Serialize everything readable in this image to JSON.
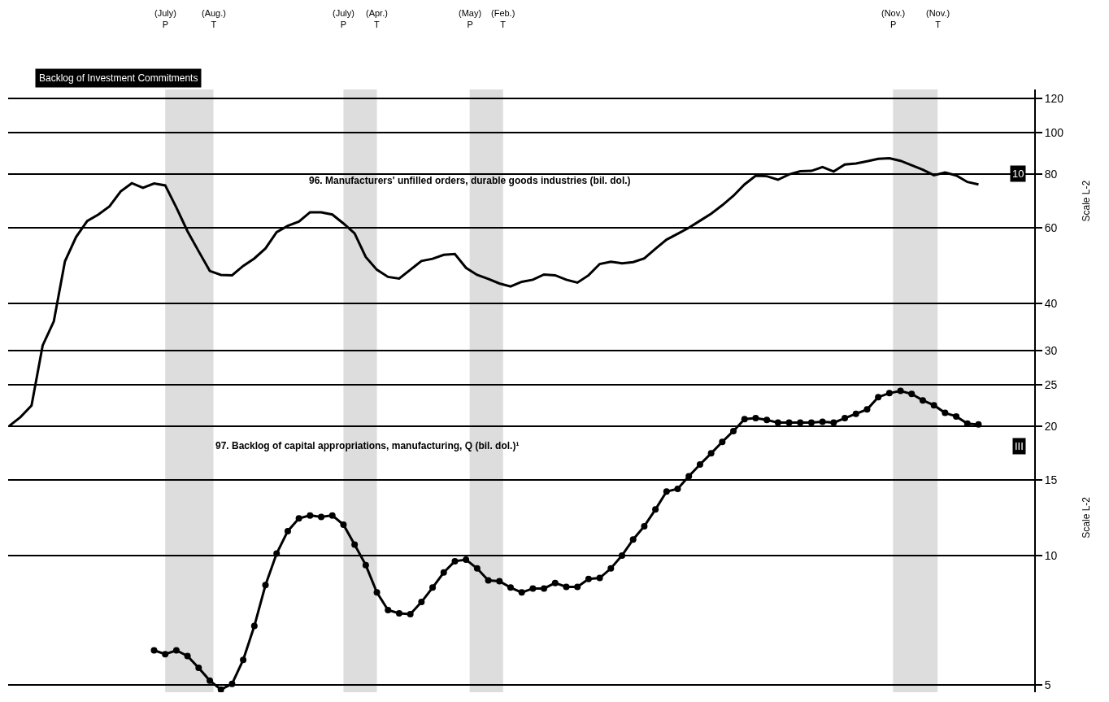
{
  "chart_data": [
    {
      "type": "line",
      "title": "Backlog of Investment Commitments",
      "ylabel": "Scale L-2",
      "log": true,
      "grid": "y",
      "legend": false,
      "tick_labels": "y",
      "categories": [
        null,
        null,
        null,
        null,
        null,
        null,
        null,
        null,
        null,
        null,
        null,
        null,
        null,
        null,
        null,
        null,
        null,
        null,
        null,
        null,
        null,
        null,
        null,
        null,
        null,
        null,
        null,
        null,
        null,
        null,
        null,
        null,
        null,
        null,
        null,
        null,
        null,
        null,
        null,
        null,
        null,
        null,
        null,
        null,
        null,
        null,
        null,
        null,
        null,
        null,
        null,
        null,
        null,
        null,
        null,
        null,
        null,
        null,
        null,
        null,
        null,
        null,
        null,
        null,
        null,
        null,
        null,
        null,
        null,
        null,
        null,
        null,
        null,
        null,
        null,
        null,
        null,
        null,
        null,
        null,
        null,
        null,
        null,
        null,
        null,
        null,
        null,
        null,
        null,
        null,
        null,
        null
      ],
      "ylim": [
        5,
        126
      ],
      "yticks": [
        40,
        60,
        80,
        100,
        120
      ],
      "annotations": [
        "(July)\nP",
        "(Aug.)\nT",
        "(July)\nP",
        "(Apr.)\nT",
        "(May)\nP",
        "(Feb.)\nT",
        "(Nov.)\nP",
        "(Nov.)\nT",
        "10"
      ],
      "series": [
        {
          "name": "96. Manufacturers' unfilled orders, durable goods industries (bil. dol.)",
          "color": "#000000",
          "marker": "none",
          "values": [
            20.8,
            21.8,
            23.2,
            32,
            36.4,
            50.2,
            57.2,
            62.3,
            64.5,
            67.4,
            73,
            76.3,
            74.4,
            76.2,
            75.4,
            67.0,
            59.0,
            53,
            47.7,
            46.7,
            46.6,
            49,
            51,
            53.8,
            58.7,
            60.7,
            62.1,
            65.3,
            65.3,
            64.5,
            61.5,
            58.3,
            51.4,
            48,
            46.2,
            45.8,
            48,
            50.3,
            50.9,
            52,
            52.2,
            48.5,
            46.7,
            45.7,
            44.6,
            43.9,
            45,
            45.5,
            46.8,
            46.6,
            45.5,
            44.8,
            46.6,
            49.5,
            50.1,
            49.7,
            50,
            51.0,
            53.7,
            56.4,
            58.2,
            60.1,
            62.4,
            64.8,
            67.8,
            71.3,
            75.8,
            79.4,
            79.2,
            77.7,
            80,
            81.3,
            81.5,
            83.2,
            81.2,
            84.3,
            84.8,
            85.8,
            86.9,
            87.2,
            86.0,
            84,
            82,
            79.6,
            80.8,
            79.5,
            76.8,
            75.8,
            null,
            null,
            null,
            null
          ]
        }
      ]
    },
    {
      "type": "line",
      "ylabel": "Scale L-2",
      "log": true,
      "grid": "y",
      "legend": false,
      "tick_labels": "y",
      "categories": [
        null,
        null,
        null,
        null,
        null,
        null,
        null,
        null,
        null,
        null,
        null,
        null,
        null,
        null,
        null,
        null,
        null,
        null,
        null,
        null,
        null,
        null,
        null,
        null,
        null,
        null,
        null,
        null,
        null,
        null,
        null,
        null,
        null,
        null,
        null,
        null,
        null,
        null,
        null,
        null,
        null,
        null,
        null,
        null,
        null,
        null,
        null,
        null,
        null,
        null,
        null,
        null,
        null,
        null,
        null,
        null,
        null,
        null,
        null,
        null,
        null,
        null,
        null,
        null,
        null,
        null,
        null,
        null,
        null,
        null,
        null,
        null,
        null,
        null,
        null,
        null,
        null,
        null,
        null,
        null,
        null,
        null,
        null,
        null,
        null,
        null,
        null,
        null,
        null,
        null,
        null,
        null
      ],
      "ylim": [
        4.8,
        122
      ],
      "yticks": [
        5,
        10,
        15,
        20,
        25,
        30
      ],
      "annotations": [
        "III"
      ],
      "series": [
        {
          "name": "97. Backlog of capital appropriations, manufacturing, Q (bil. dol.)¹",
          "color": "#000000",
          "marker": "circle",
          "values": [
            null,
            null,
            null,
            null,
            null,
            null,
            null,
            null,
            null,
            null,
            null,
            null,
            null,
            6.01,
            5.89,
            6.01,
            5.83,
            5.47,
            5.11,
            4.87,
            5.02,
            5.71,
            6.85,
            8.53,
            10.1,
            11.4,
            12.2,
            12.4,
            12.3,
            12.4,
            11.8,
            10.6,
            9.5,
            8.2,
            7.46,
            7.33,
            7.3,
            7.79,
            8.42,
            9.13,
            9.7,
            9.78,
            9.33,
            8.75,
            8.71,
            8.42,
            8.2,
            8.38,
            8.38,
            8.63,
            8.45,
            8.45,
            8.82,
            8.86,
            9.33,
            10.0,
            10.9,
            11.7,
            12.8,
            14.1,
            14.3,
            15.3,
            16.3,
            17.3,
            18.4,
            19.5,
            20.8,
            20.9,
            20.7,
            20.4,
            20.4,
            20.4,
            20.4,
            20.5,
            20.4,
            20.9,
            21.4,
            21.9,
            23.4,
            23.9,
            24.2,
            23.8,
            23.0,
            22.4,
            21.5,
            21.1,
            20.3,
            20.2,
            null,
            null,
            null,
            null
          ]
        }
      ]
    }
  ]
}
